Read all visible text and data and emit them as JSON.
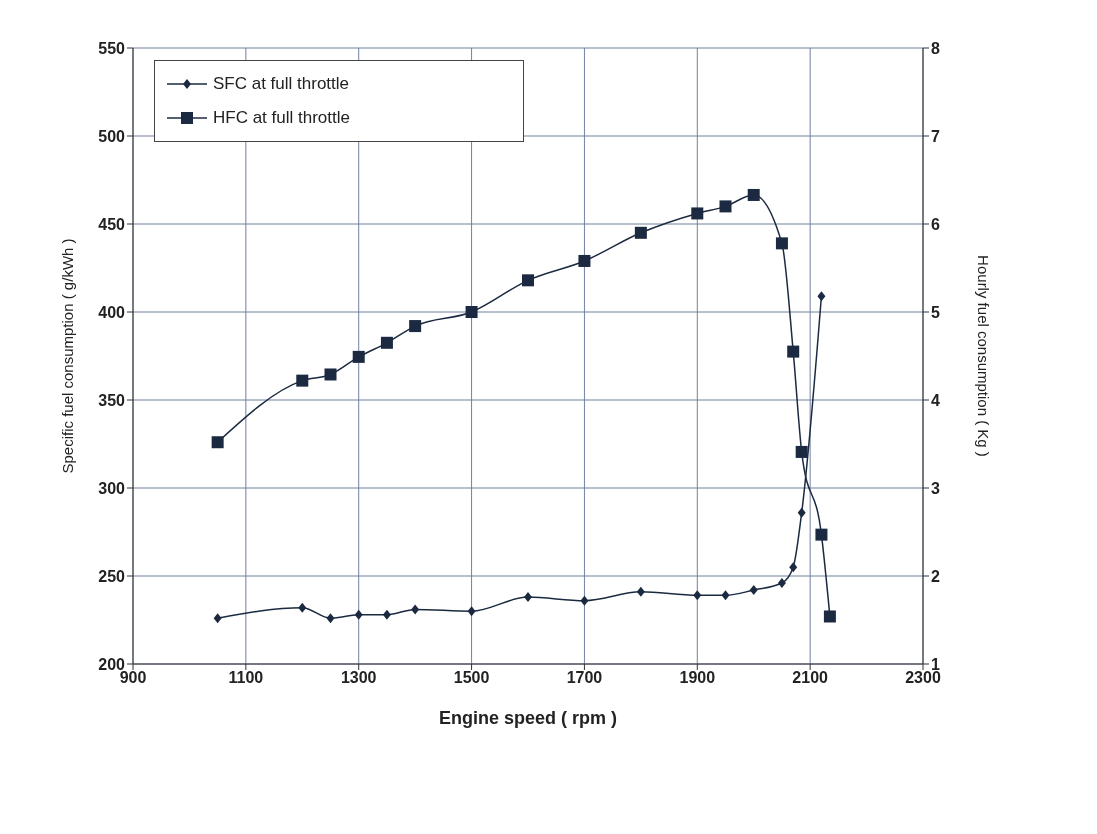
{
  "chart_data": {
    "type": "line",
    "xlabel": "Engine speed ( rpm )",
    "ylabel": "Specific fuel consumption ( g/kWh )",
    "y2label": "Hourly fuel consumption ( Kg )",
    "xlim": [
      900,
      2300
    ],
    "xticks": [
      900,
      1100,
      1300,
      1500,
      1700,
      1900,
      2100,
      2300
    ],
    "ylim": [
      200,
      550
    ],
    "yticks": [
      200,
      250,
      300,
      350,
      400,
      450,
      500,
      550
    ],
    "y2lim": [
      1,
      8
    ],
    "y2ticks": [
      1,
      2,
      3,
      4,
      5,
      6,
      7,
      8
    ],
    "grid": true,
    "legend": "top left",
    "series": [
      {
        "name": "SFC at full throttle",
        "color": "#1b2a40",
        "marker": "diamond",
        "x": [
          1050,
          1200,
          1250,
          1300,
          1350,
          1400,
          1500,
          1600,
          1700,
          1800,
          1900,
          1950,
          2000,
          2050,
          2070,
          2085,
          2120
        ],
        "values": [
          226,
          232,
          226,
          228,
          228,
          231,
          230,
          238,
          236,
          241,
          239,
          239,
          242,
          246,
          255,
          286,
          409
        ]
      },
      {
        "name": "HFC at full throttle",
        "color": "#1b2a40",
        "marker": "square",
        "axis": "y2",
        "x": [
          1050,
          1200,
          1250,
          1300,
          1350,
          1400,
          1500,
          1600,
          1700,
          1800,
          1900,
          1950,
          2000,
          2050,
          2070,
          2085,
          2120,
          2135
        ],
        "values": [
          3.52,
          4.22,
          4.29,
          4.49,
          4.65,
          4.84,
          5.0,
          5.36,
          5.58,
          5.9,
          6.12,
          6.2,
          6.33,
          5.78,
          4.55,
          3.41,
          2.47,
          1.54
        ]
      }
    ]
  }
}
